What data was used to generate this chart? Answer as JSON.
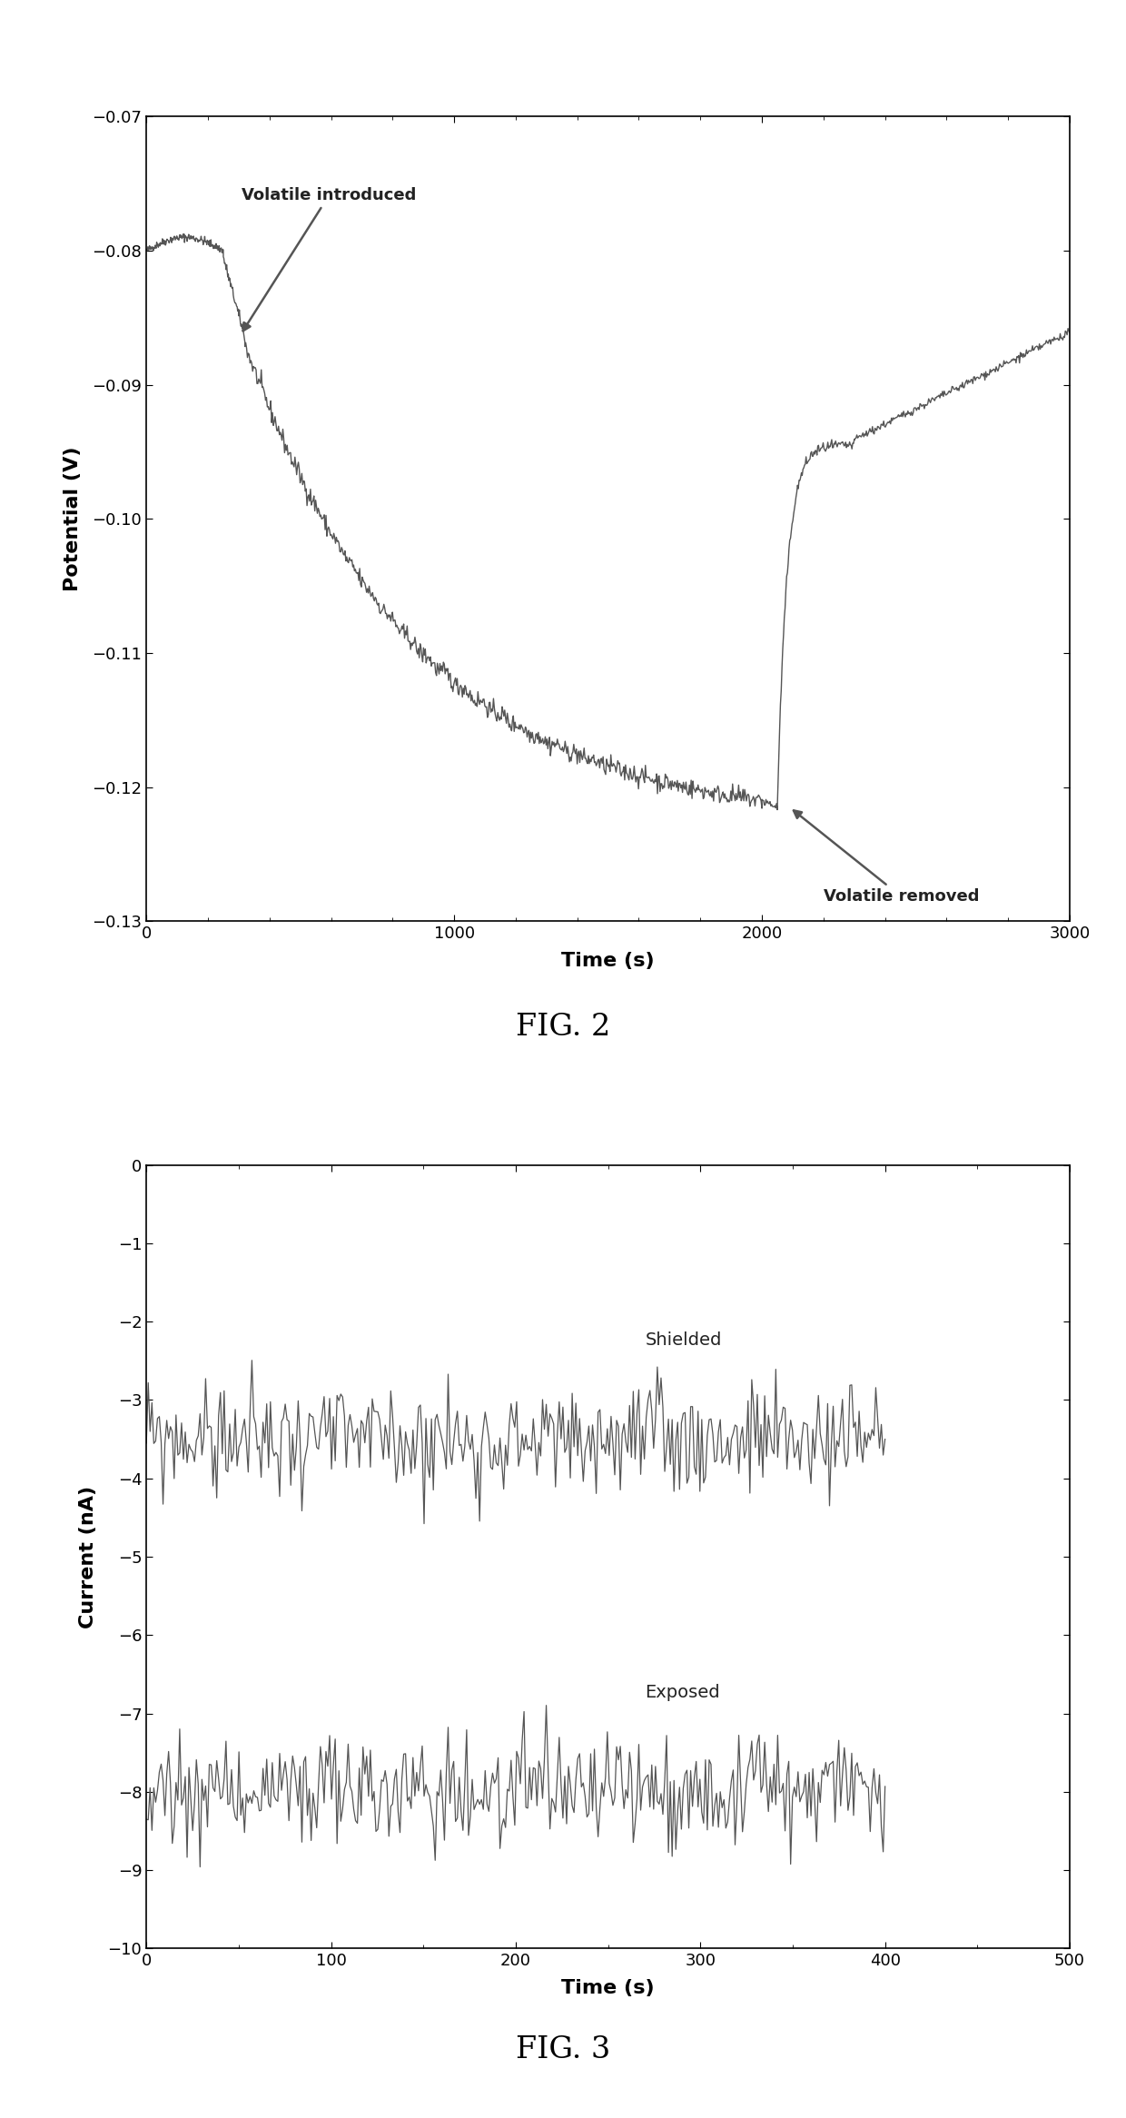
{
  "fig2": {
    "title": "FIG. 2",
    "xlabel": "Time (s)",
    "ylabel": "Potential (V)",
    "xlim": [
      0,
      3000
    ],
    "ylim": [
      -0.13,
      -0.07
    ],
    "yticks": [
      -0.13,
      -0.12,
      -0.11,
      -0.1,
      -0.09,
      -0.08,
      -0.07
    ],
    "xticks": [
      0,
      1000,
      2000,
      3000
    ],
    "line_color": "#555555",
    "annotation1_text": "Volatile introduced",
    "annotation2_text": "Volatile removed",
    "seed1": 42
  },
  "fig3": {
    "title": "FIG. 3",
    "xlabel": "Time (s)",
    "ylabel": "Current (nA)",
    "xlim": [
      0,
      500
    ],
    "ylim": [
      -10,
      0
    ],
    "yticks": [
      0,
      -1,
      -2,
      -3,
      -4,
      -5,
      -6,
      -7,
      -8,
      -9,
      -10
    ],
    "xticks": [
      0,
      100,
      200,
      300,
      400,
      500
    ],
    "line_color": "#555555",
    "shielded_mean": -3.5,
    "shielded_noise": 0.35,
    "exposed_mean": -8.0,
    "exposed_noise": 0.35,
    "label_shielded": "Shielded",
    "label_exposed": "Exposed",
    "seed2": 99
  },
  "background_color": "#ffffff",
  "line_width": 1.0,
  "font_size_label": 16,
  "font_size_title": 24,
  "font_size_tick": 13,
  "font_size_annotation": 13
}
